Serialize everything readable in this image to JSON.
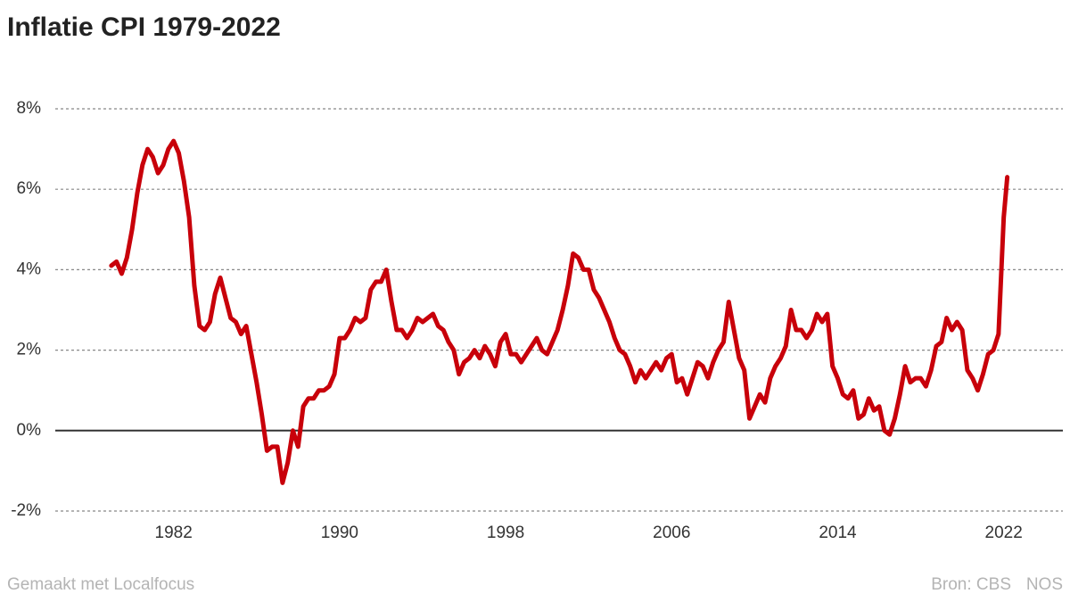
{
  "chart_data": {
    "type": "line",
    "title": "Inflatie CPI 1979-2022",
    "credit": "Gemaakt met Localfocus",
    "source": "Bron: CBS",
    "publisher": "NOS",
    "x": [
      1979,
      1979.25,
      1979.5,
      1979.75,
      1980,
      1980.25,
      1980.5,
      1980.75,
      1981,
      1981.25,
      1981.5,
      1981.75,
      1982,
      1982.25,
      1982.5,
      1982.75,
      1983,
      1983.25,
      1983.5,
      1983.75,
      1984,
      1984.25,
      1984.5,
      1984.75,
      1985,
      1985.25,
      1985.5,
      1985.75,
      1986,
      1986.25,
      1986.5,
      1986.75,
      1987,
      1987.25,
      1987.5,
      1987.75,
      1988,
      1988.25,
      1988.5,
      1988.75,
      1989,
      1989.25,
      1989.5,
      1989.75,
      1990,
      1990.25,
      1990.5,
      1990.75,
      1991,
      1991.25,
      1991.5,
      1991.75,
      1992,
      1992.25,
      1992.5,
      1992.75,
      1993,
      1993.25,
      1993.5,
      1993.75,
      1994,
      1994.25,
      1994.5,
      1994.75,
      1995,
      1995.25,
      1995.5,
      1995.75,
      1996,
      1996.25,
      1996.5,
      1996.75,
      1997,
      1997.25,
      1997.5,
      1997.75,
      1998,
      1998.25,
      1998.5,
      1998.75,
      1999,
      1999.25,
      1999.5,
      1999.75,
      2000,
      2000.25,
      2000.5,
      2000.75,
      2001,
      2001.25,
      2001.5,
      2001.75,
      2002,
      2002.25,
      2002.5,
      2002.75,
      2003,
      2003.25,
      2003.5,
      2003.75,
      2004,
      2004.25,
      2004.5,
      2004.75,
      2005,
      2005.25,
      2005.5,
      2005.75,
      2006,
      2006.25,
      2006.5,
      2006.75,
      2007,
      2007.25,
      2007.5,
      2007.75,
      2008,
      2008.25,
      2008.5,
      2008.75,
      2009,
      2009.25,
      2009.5,
      2009.75,
      2010,
      2010.25,
      2010.5,
      2010.75,
      2011,
      2011.25,
      2011.5,
      2011.75,
      2012,
      2012.25,
      2012.5,
      2012.75,
      2013,
      2013.25,
      2013.5,
      2013.75,
      2014,
      2014.25,
      2014.5,
      2014.75,
      2015,
      2015.25,
      2015.5,
      2015.75,
      2016,
      2016.25,
      2016.5,
      2016.75,
      2017,
      2017.25,
      2017.5,
      2017.75,
      2018,
      2018.25,
      2018.5,
      2018.75,
      2019,
      2019.25,
      2019.5,
      2019.75,
      2020,
      2020.25,
      2020.5,
      2020.75,
      2021,
      2021.25,
      2021.5,
      2021.75,
      2022,
      2022.17
    ],
    "series": [
      {
        "name": "Inflatie CPI",
        "color": "#c8000a",
        "values": [
          4.1,
          4.2,
          3.9,
          4.3,
          5.0,
          5.9,
          6.6,
          7.0,
          6.8,
          6.4,
          6.6,
          7.0,
          7.2,
          6.9,
          6.2,
          5.3,
          3.6,
          2.6,
          2.5,
          2.7,
          3.4,
          3.8,
          3.3,
          2.8,
          2.7,
          2.4,
          2.6,
          1.9,
          1.2,
          0.4,
          -0.5,
          -0.4,
          -0.4,
          -1.3,
          -0.8,
          0.0,
          -0.4,
          0.6,
          0.8,
          0.8,
          1.0,
          1.0,
          1.1,
          1.4,
          2.3,
          2.3,
          2.5,
          2.8,
          2.7,
          2.8,
          3.5,
          3.7,
          3.7,
          4.0,
          3.2,
          2.5,
          2.5,
          2.3,
          2.5,
          2.8,
          2.7,
          2.8,
          2.9,
          2.6,
          2.5,
          2.2,
          2.0,
          1.4,
          1.7,
          1.8,
          2.0,
          1.8,
          2.1,
          1.9,
          1.6,
          2.2,
          2.4,
          1.9,
          1.9,
          1.7,
          1.9,
          2.1,
          2.3,
          2.0,
          1.9,
          2.2,
          2.5,
          3.0,
          3.6,
          4.4,
          4.3,
          4.0,
          4.0,
          3.5,
          3.3,
          3.0,
          2.7,
          2.3,
          2.0,
          1.9,
          1.6,
          1.2,
          1.5,
          1.3,
          1.5,
          1.7,
          1.5,
          1.8,
          1.9,
          1.2,
          1.3,
          0.9,
          1.3,
          1.7,
          1.6,
          1.3,
          1.7,
          2.0,
          2.2,
          3.2,
          2.5,
          1.8,
          1.5,
          0.3,
          0.6,
          0.9,
          0.7,
          1.3,
          1.6,
          1.8,
          2.1,
          3.0,
          2.5,
          2.5,
          2.3,
          2.5,
          2.9,
          2.7,
          2.9,
          1.6,
          1.3,
          0.9,
          0.8,
          1.0,
          0.3,
          0.4,
          0.8,
          0.5,
          0.6,
          0.0,
          -0.1,
          0.3,
          0.9,
          1.6,
          1.2,
          1.3,
          1.3,
          1.1,
          1.5,
          2.1,
          2.2,
          2.8,
          2.5,
          2.7,
          2.5,
          1.5,
          1.3,
          1.0,
          1.4,
          1.9,
          2.0,
          2.4,
          5.3,
          6.3
        ]
      }
    ],
    "xlim": [
      1976.3,
      2024.85
    ],
    "xticks": [
      1982,
      1990,
      1998,
      2006,
      2014,
      2022
    ],
    "ylim": [
      -2,
      8
    ],
    "yticks": [
      {
        "value": -2,
        "label": "-2%"
      },
      {
        "value": 0,
        "label": "0%"
      },
      {
        "value": 2,
        "label": "2%"
      },
      {
        "value": 4,
        "label": "4%"
      },
      {
        "value": 6,
        "label": "6%"
      },
      {
        "value": 8,
        "label": "8%"
      }
    ],
    "grid": true
  }
}
